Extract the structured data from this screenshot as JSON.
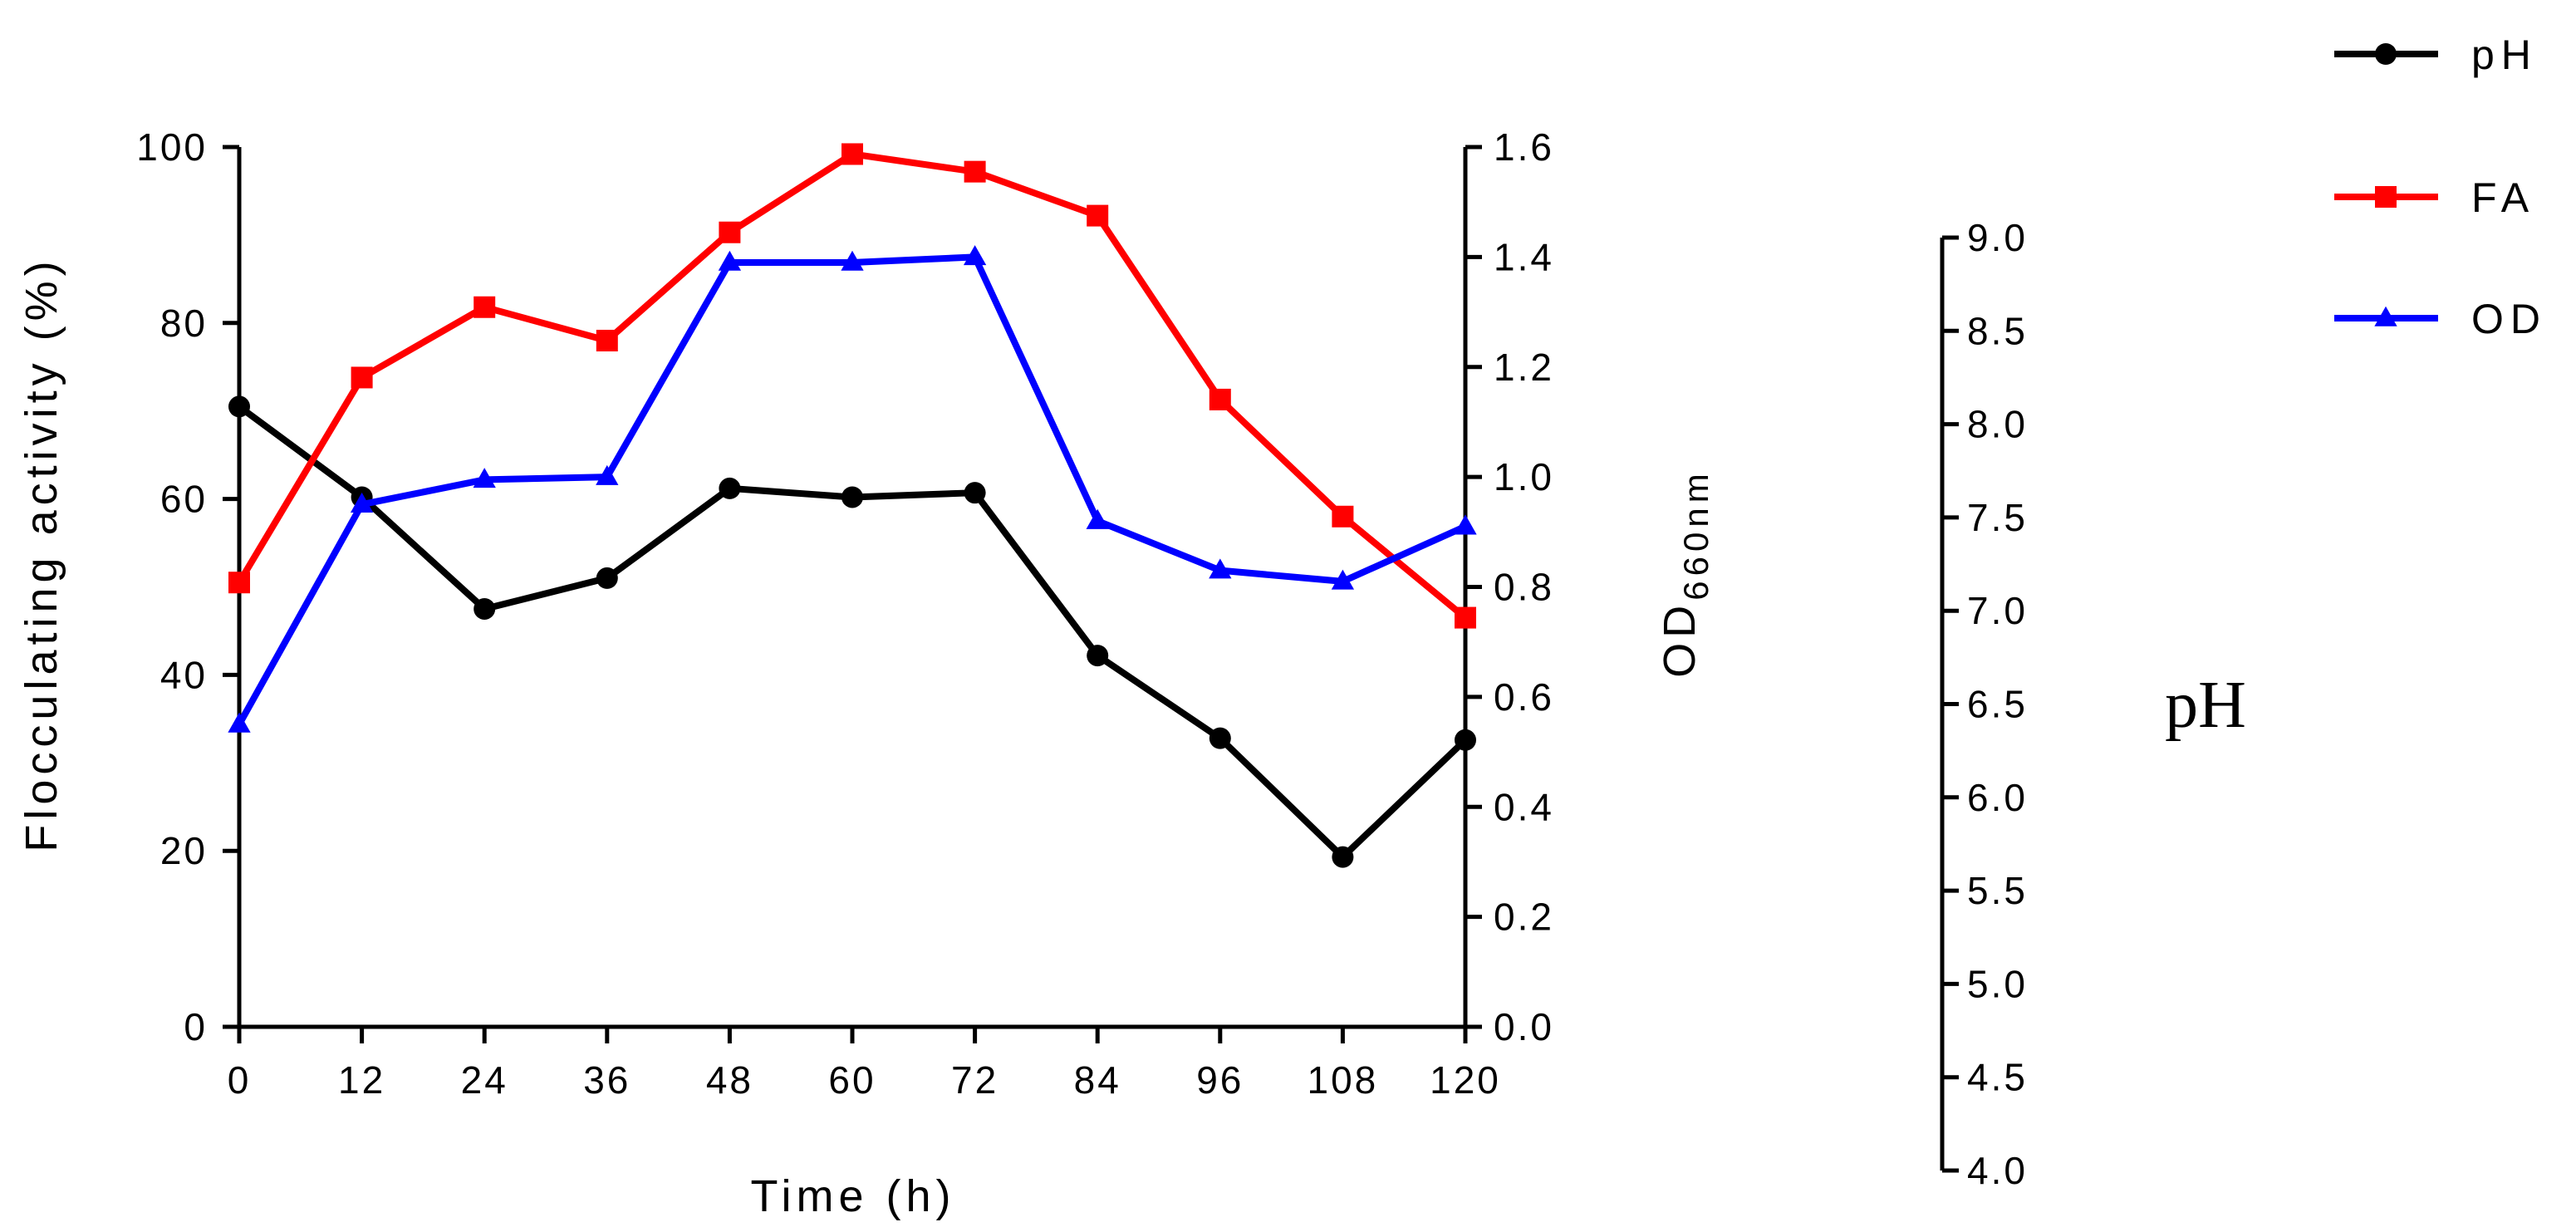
{
  "chart_data": {
    "type": "line",
    "x": [
      0,
      12,
      24,
      36,
      48,
      60,
      72,
      84,
      96,
      108,
      120
    ],
    "xlabel": "Time (h)",
    "xlim": [
      0,
      120
    ],
    "grid": false,
    "legend_position": "top-right",
    "axes": {
      "left": {
        "label": "Flocculating activity (%)",
        "range": [
          0,
          100
        ],
        "ticks": [
          "0",
          "20",
          "40",
          "60",
          "80",
          "100"
        ]
      },
      "right": {
        "label": "OD",
        "label_subscript": "660nm",
        "range": [
          0,
          1.6
        ],
        "ticks": [
          "0.0",
          "0.2",
          "0.4",
          "0.6",
          "0.8",
          "1.0",
          "1.2",
          "1.4",
          "1.6"
        ]
      },
      "ph": {
        "label": "pH",
        "range": [
          4.0,
          9.0
        ],
        "ticks": [
          "4.0",
          "4.5",
          "5.0",
          "5.5",
          "6.0",
          "6.5",
          "7.0",
          "7.5",
          "8.0",
          "8.5",
          "9.0"
        ]
      }
    },
    "x_ticks": [
      "0",
      "12",
      "24",
      "36",
      "48",
      "60",
      "72",
      "84",
      "96",
      "108",
      "120"
    ],
    "series": [
      {
        "name": "pH",
        "axis": "left",
        "color": "#000000",
        "marker": "circle",
        "values": [
          70.5,
          60.2,
          47.5,
          51.0,
          61.2,
          60.2,
          60.7,
          42.2,
          32.8,
          19.3,
          32.6
        ]
      },
      {
        "name": "FA",
        "axis": "left",
        "color": "#ff0000",
        "marker": "square",
        "values": [
          50.5,
          73.8,
          81.8,
          78.0,
          90.3,
          99.2,
          97.2,
          92.2,
          71.3,
          58.0,
          46.5
        ]
      },
      {
        "name": "OD",
        "axis": "right",
        "color": "#0000ff",
        "marker": "triangle",
        "values": [
          0.55,
          0.95,
          0.995,
          1.0,
          1.39,
          1.39,
          1.4,
          0.92,
          0.83,
          0.81,
          0.91
        ]
      }
    ]
  }
}
